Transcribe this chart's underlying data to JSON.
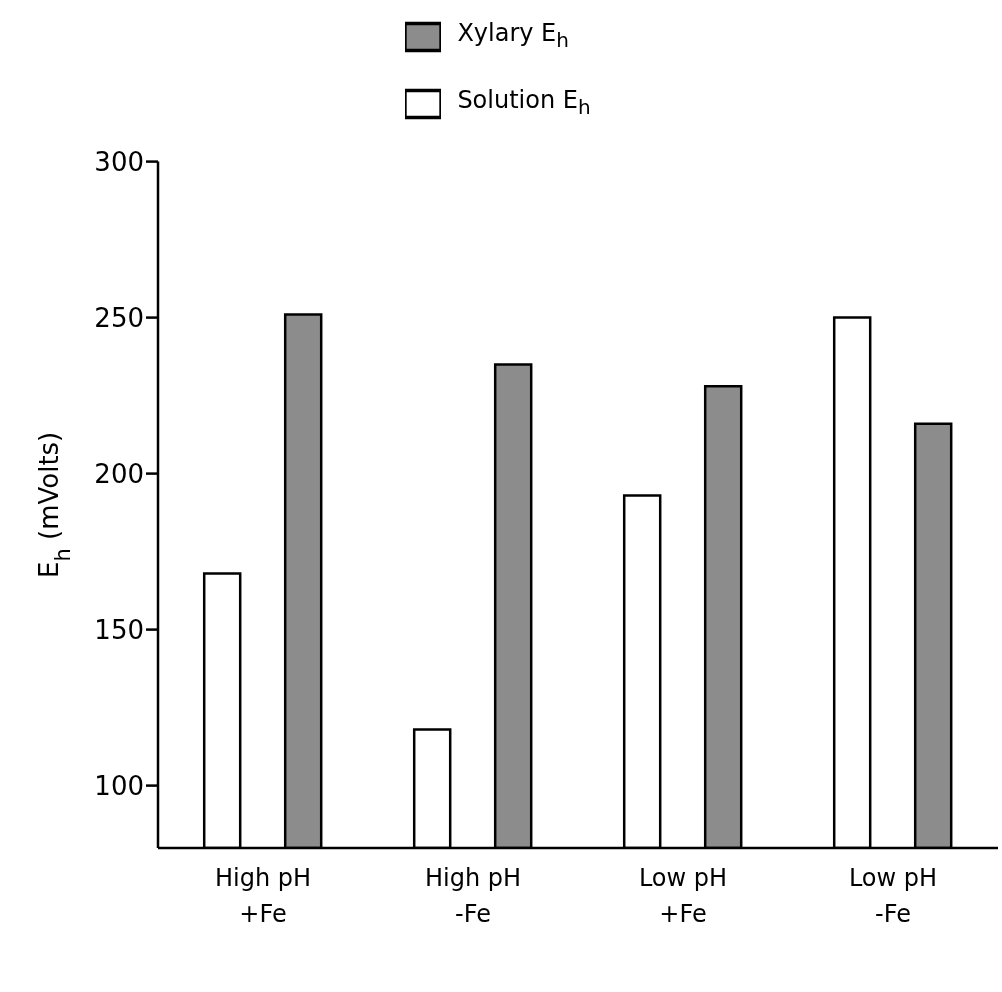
{
  "chart_data": {
    "type": "bar",
    "ylabel": "E$_{h}$ (mVolts)",
    "categories": [
      "High pH\n+Fe",
      "High pH\n-Fe",
      "Low pH\n+Fe",
      "Low pH\n-Fe"
    ],
    "series": [
      {
        "name": "Solution E$_{h}$",
        "color": "#ffffff",
        "values": [
          168,
          118,
          193,
          250
        ]
      },
      {
        "name": "Xylary E$_{h}$",
        "color": "#8c8c8c",
        "values": [
          251,
          235,
          228,
          216
        ]
      }
    ],
    "ylim": [
      80,
      300
    ],
    "yticks": [
      100,
      150,
      200,
      250,
      300
    ],
    "grid": false,
    "legend": "top"
  }
}
